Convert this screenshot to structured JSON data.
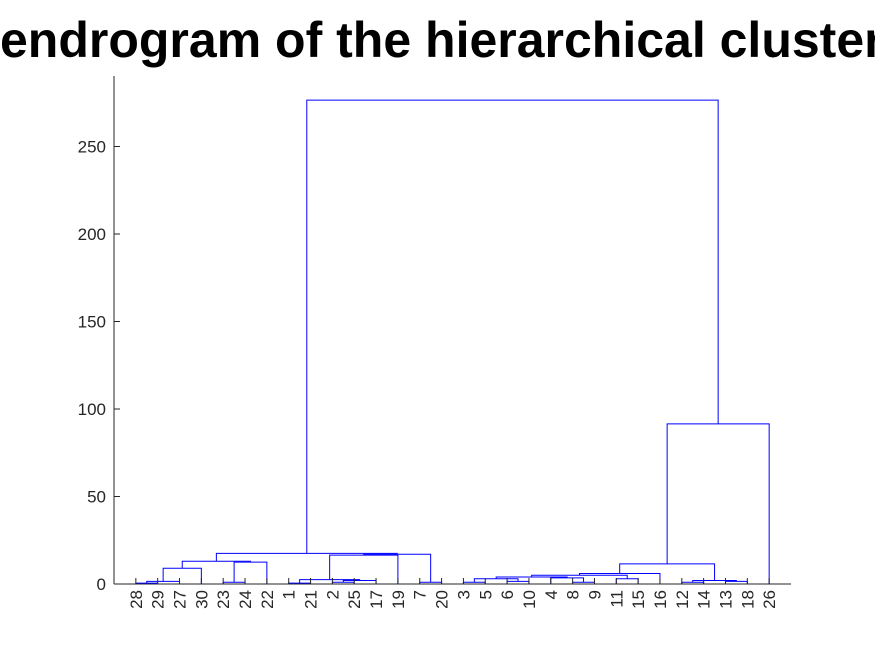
{
  "chart_data": {
    "type": "dendrogram",
    "title": "endrogram of the hierarchical cluster",
    "xlabel": "",
    "ylabel": "",
    "ylim": [
      0,
      290
    ],
    "yticks": [
      0,
      50,
      100,
      150,
      200,
      250
    ],
    "leaf_order": [
      "28",
      "29",
      "27",
      "30",
      "23",
      "24",
      "22",
      "1",
      "21",
      "2",
      "25",
      "17",
      "19",
      "7",
      "20",
      "3",
      "5",
      "6",
      "10",
      "4",
      "8",
      "9",
      "11",
      "15",
      "16",
      "12",
      "14",
      "13",
      "18",
      "26"
    ],
    "links": [
      {
        "left": "L:28",
        "right": "L:29",
        "height": 0.5,
        "id": "n1"
      },
      {
        "left": "n1",
        "right": "L:27",
        "height": 1.5,
        "id": "n2"
      },
      {
        "left": "n2",
        "right": "L:30",
        "height": 9,
        "id": "n3"
      },
      {
        "left": "L:23",
        "right": "L:24",
        "height": 1,
        "id": "n4"
      },
      {
        "left": "n4",
        "right": "L:22",
        "height": 12.5,
        "id": "n5"
      },
      {
        "left": "n3",
        "right": "n5",
        "height": 13,
        "id": "n6"
      },
      {
        "left": "L:1",
        "right": "L:21",
        "height": 0.5,
        "id": "n7"
      },
      {
        "left": "L:2",
        "right": "L:25",
        "height": 1,
        "id": "n8"
      },
      {
        "left": "n8",
        "right": "L:17",
        "height": 2,
        "id": "n9"
      },
      {
        "left": "n7",
        "right": "n9",
        "height": 2.5,
        "id": "n10"
      },
      {
        "left": "n10",
        "right": "L:19",
        "height": 16.5,
        "id": "n11"
      },
      {
        "left": "L:7",
        "right": "L:20",
        "height": 1,
        "id": "n12"
      },
      {
        "left": "n11",
        "right": "n12",
        "height": 17,
        "id": "n13"
      },
      {
        "left": "n6",
        "right": "n13",
        "height": 17.5,
        "id": "n14"
      },
      {
        "left": "L:3",
        "right": "L:5",
        "height": 1,
        "id": "n15"
      },
      {
        "left": "L:6",
        "right": "L:10",
        "height": 1.5,
        "id": "n16"
      },
      {
        "left": "n15",
        "right": "n16",
        "height": 3,
        "id": "n17"
      },
      {
        "left": "L:8",
        "right": "L:9",
        "height": 1,
        "id": "n18"
      },
      {
        "left": "L:4",
        "right": "n18",
        "height": 3.5,
        "id": "n19"
      },
      {
        "left": "n17",
        "right": "n19",
        "height": 4,
        "id": "n20"
      },
      {
        "left": "L:11",
        "right": "L:15",
        "height": 3,
        "id": "n21"
      },
      {
        "left": "n20",
        "right": "n21",
        "height": 5,
        "id": "n22"
      },
      {
        "left": "n22",
        "right": "L:16",
        "height": 6,
        "id": "n23"
      },
      {
        "left": "L:12",
        "right": "L:14",
        "height": 1,
        "id": "n24"
      },
      {
        "left": "L:13",
        "right": "L:18",
        "height": 1.5,
        "id": "n25"
      },
      {
        "left": "n24",
        "right": "n25",
        "height": 2,
        "id": "n26"
      },
      {
        "left": "n23",
        "right": "n26",
        "height": 11.5,
        "id": "n27"
      },
      {
        "left": "n27",
        "right": "L:26",
        "height": 91.5,
        "id": "n28"
      },
      {
        "left": "n14",
        "right": "n28",
        "height": 276.5,
        "id": "n29"
      }
    ],
    "line_color": "#0000ff",
    "axis_color": "#262626",
    "grid": false,
    "legend": "none"
  }
}
